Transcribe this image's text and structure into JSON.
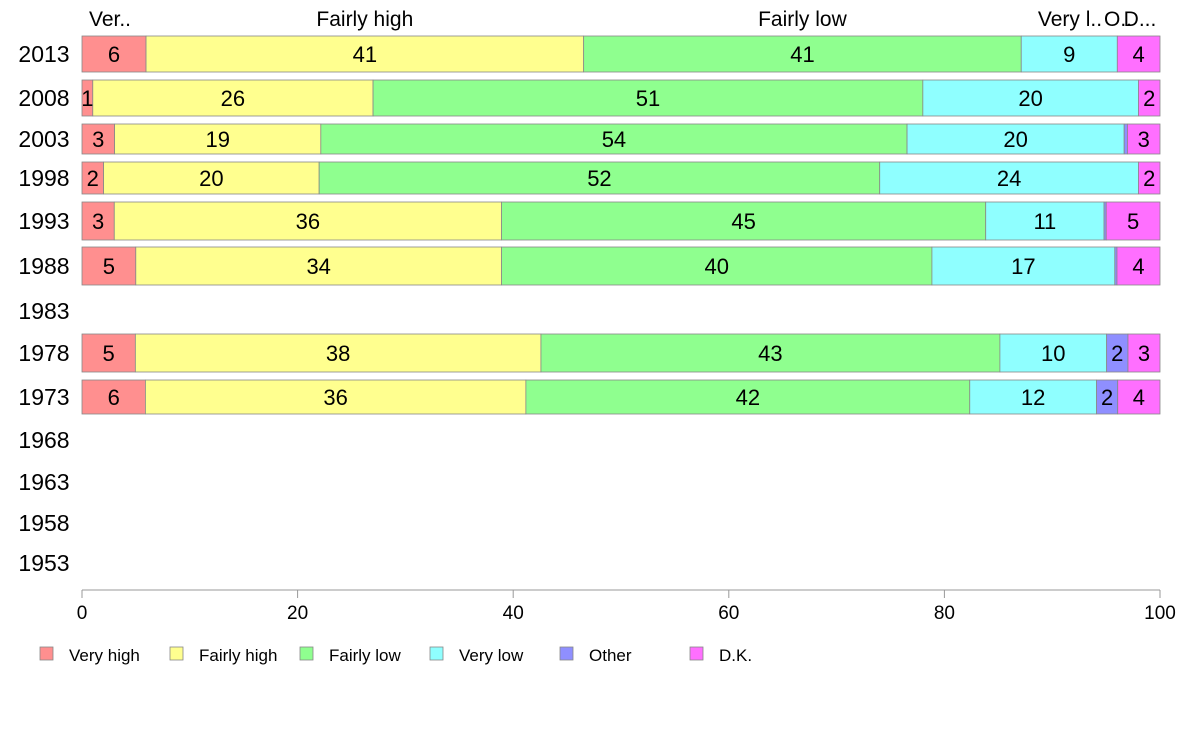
{
  "chart_data": {
    "type": "bar",
    "orientation": "horizontal",
    "stacked": true,
    "categories": [
      "2013",
      "2008",
      "2003",
      "1998",
      "1993",
      "1988",
      "1983",
      "1978",
      "1973",
      "1968",
      "1963",
      "1958",
      "1953"
    ],
    "series": [
      {
        "name": "Very high",
        "color": "#ff8f8f",
        "values": [
          6,
          1,
          3,
          2,
          3,
          5,
          null,
          5,
          6,
          null,
          null,
          null,
          null
        ]
      },
      {
        "name": "Fairly high",
        "color": "#ffff8f",
        "values": [
          41,
          26,
          19,
          20,
          36,
          34,
          null,
          38,
          36,
          null,
          null,
          null,
          null
        ]
      },
      {
        "name": "Fairly low",
        "color": "#8fff8f",
        "values": [
          41,
          51,
          54,
          52,
          45,
          40,
          null,
          43,
          42,
          null,
          null,
          null,
          null
        ]
      },
      {
        "name": "Very low",
        "color": "#8fffff",
        "values": [
          9,
          20,
          20,
          24,
          11,
          17,
          null,
          10,
          12,
          null,
          null,
          null,
          null
        ]
      },
      {
        "name": "Other",
        "color": "#8f8fff",
        "values": [
          0,
          0,
          0.3,
          0,
          0.2,
          0.2,
          null,
          2,
          2,
          null,
          null,
          null,
          null
        ]
      },
      {
        "name": "D.K.",
        "color": "#ff6fff",
        "values": [
          4,
          2,
          3,
          2,
          5,
          4,
          null,
          3,
          4,
          null,
          null,
          null,
          null
        ]
      }
    ],
    "data_labels": [
      [
        "6",
        "41",
        "41",
        "9",
        "",
        "4"
      ],
      [
        "1",
        "26",
        "51",
        "20",
        "",
        "2"
      ],
      [
        "3",
        "19",
        "54",
        "20",
        "",
        "3"
      ],
      [
        "2",
        "20",
        "52",
        "24",
        "",
        "2"
      ],
      [
        "3",
        "36",
        "45",
        "11",
        "",
        "5"
      ],
      [
        "5",
        "34",
        "40",
        "17",
        "",
        "4"
      ],
      [
        "",
        "",
        "",
        "",
        "",
        ""
      ],
      [
        "5",
        "38",
        "43",
        "10",
        "2",
        "3"
      ],
      [
        "6",
        "36",
        "42",
        "12",
        "2",
        "4"
      ],
      [
        "",
        "",
        "",
        "",
        "",
        ""
      ],
      [
        "",
        "",
        "",
        "",
        "",
        ""
      ],
      [
        "",
        "",
        "",
        "",
        "",
        ""
      ],
      [
        "",
        "",
        "",
        "",
        "",
        ""
      ]
    ],
    "top_labels": [
      "Ver..",
      "Fairly high",
      "Fairly low",
      "Very l..",
      "O..",
      "D..."
    ],
    "xlim": [
      0,
      100
    ],
    "xticks": [
      "0",
      "20",
      "40",
      "60",
      "80",
      "100"
    ],
    "grid": false,
    "legend_position": "bottom"
  }
}
